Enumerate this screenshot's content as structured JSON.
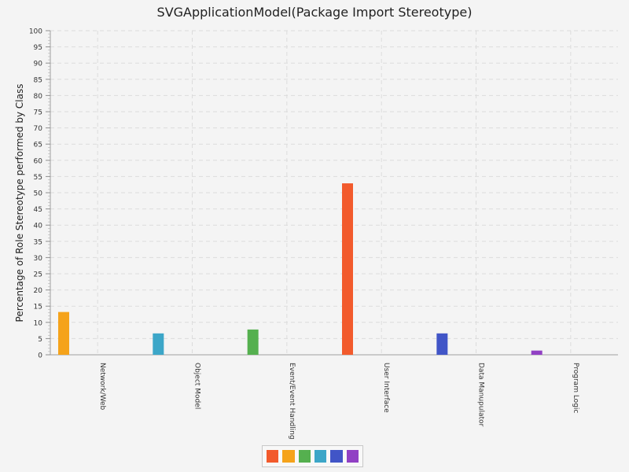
{
  "chart_data": {
    "type": "bar",
    "title": "SVGApplicationModel(Package Import Stereotype)",
    "xlabel": "",
    "ylabel": "Percentage of Role Stereotype performed by Class",
    "ylim": [
      0,
      100
    ],
    "yticks": [
      0,
      5,
      10,
      15,
      20,
      25,
      30,
      35,
      40,
      45,
      50,
      55,
      60,
      65,
      70,
      75,
      80,
      85,
      90,
      95,
      100
    ],
    "grid": true,
    "categories": [
      "Network/Web",
      "Object Model",
      "Event/Event Handling",
      "User Interface",
      "Data Manupulator",
      "Program Logic"
    ],
    "series": [
      {
        "color": "#f25a2c",
        "values": [
          0,
          0,
          0,
          52.9,
          0,
          0
        ]
      },
      {
        "color": "#f5a31b",
        "values": [
          13.2,
          0,
          0,
          0,
          0,
          0
        ]
      },
      {
        "color": "#55b04f",
        "values": [
          0,
          0,
          7.8,
          0,
          0,
          0
        ]
      },
      {
        "color": "#3ca6c8",
        "values": [
          0,
          6.6,
          0,
          0,
          0,
          0
        ]
      },
      {
        "color": "#4155c7",
        "values": [
          0,
          0,
          0,
          0,
          6.6,
          0
        ]
      },
      {
        "color": "#9140c4",
        "values": [
          0,
          0,
          0,
          0,
          0,
          1.3
        ]
      }
    ],
    "legend_position": "bottom"
  }
}
